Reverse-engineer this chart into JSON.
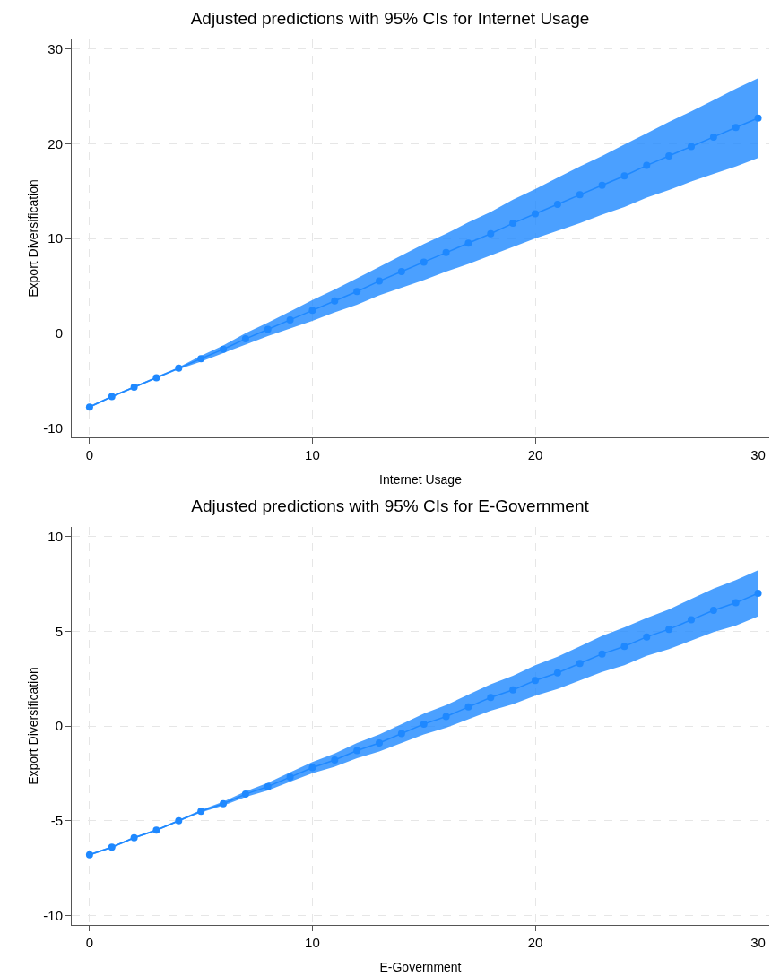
{
  "chart_data": [
    {
      "type": "line",
      "title": "Adjusted predictions with 95% CIs for Internet Usage",
      "xlabel": "Internet Usage",
      "ylabel": "Export Diversification",
      "x": [
        0,
        1,
        2,
        3,
        4,
        5,
        6,
        7,
        8,
        9,
        10,
        11,
        12,
        13,
        14,
        15,
        16,
        17,
        18,
        19,
        20,
        21,
        22,
        23,
        24,
        25,
        26,
        27,
        28,
        29,
        30
      ],
      "series": [
        {
          "color": "#1e88ff",
          "values": [
            -7.8,
            -6.7,
            -5.7,
            -4.7,
            -3.7,
            -2.7,
            -1.7,
            -0.6,
            0.4,
            1.4,
            2.4,
            3.4,
            4.4,
            5.5,
            6.5,
            7.5,
            8.5,
            9.5,
            10.5,
            11.6,
            12.6,
            13.6,
            14.6,
            15.6,
            16.6,
            17.7,
            18.7,
            19.7,
            20.7,
            21.7,
            22.7
          ],
          "lower": [
            -7.9,
            -6.8,
            -5.8,
            -4.8,
            -3.8,
            -3.0,
            -2.1,
            -1.2,
            -0.3,
            0.5,
            1.3,
            2.2,
            3.0,
            4.0,
            4.8,
            5.6,
            6.5,
            7.3,
            8.2,
            9.1,
            10.0,
            10.8,
            11.6,
            12.5,
            13.3,
            14.3,
            15.1,
            16.0,
            16.8,
            17.6,
            18.5
          ],
          "upper": [
            -7.7,
            -6.6,
            -5.6,
            -4.6,
            -3.6,
            -2.4,
            -1.3,
            0.0,
            1.1,
            2.3,
            3.5,
            4.6,
            5.8,
            7.0,
            8.2,
            9.4,
            10.5,
            11.7,
            12.8,
            14.1,
            15.2,
            16.4,
            17.6,
            18.7,
            19.9,
            21.1,
            22.3,
            23.4,
            24.6,
            25.8,
            26.9
          ]
        }
      ],
      "xlim": [
        -0.8,
        30.5
      ],
      "xticks": [
        0,
        10,
        20,
        30
      ],
      "ylim": [
        -11,
        31
      ],
      "yticks": [
        -10,
        0,
        10,
        20,
        30
      ],
      "grid": true,
      "marker": "circle",
      "line_style": "solid"
    },
    {
      "type": "line",
      "title": "Adjusted predictions with 95% CIs for E-Government",
      "xlabel": "E-Government",
      "ylabel": "Export Diversification",
      "x": [
        0,
        1,
        2,
        3,
        4,
        5,
        6,
        7,
        8,
        9,
        10,
        11,
        12,
        13,
        14,
        15,
        16,
        17,
        18,
        19,
        20,
        21,
        22,
        23,
        24,
        25,
        26,
        27,
        28,
        29,
        30
      ],
      "series": [
        {
          "color": "#1e88ff",
          "values": [
            -6.8,
            -6.4,
            -5.9,
            -5.5,
            -5.0,
            -4.5,
            -4.1,
            -3.6,
            -3.2,
            -2.7,
            -2.2,
            -1.8,
            -1.3,
            -0.9,
            -0.4,
            0.1,
            0.5,
            1.0,
            1.5,
            1.9,
            2.4,
            2.8,
            3.3,
            3.8,
            4.2,
            4.7,
            5.1,
            5.6,
            6.1,
            6.5,
            7.0
          ],
          "lower": [
            -6.85,
            -6.45,
            -5.95,
            -5.55,
            -5.05,
            -4.57,
            -4.2,
            -3.75,
            -3.4,
            -2.95,
            -2.5,
            -2.15,
            -1.7,
            -1.35,
            -0.9,
            -0.45,
            -0.1,
            0.35,
            0.8,
            1.15,
            1.6,
            1.95,
            2.4,
            2.85,
            3.2,
            3.7,
            4.05,
            4.5,
            4.95,
            5.3,
            5.78
          ],
          "upper": [
            -6.75,
            -6.35,
            -5.85,
            -5.45,
            -4.95,
            -4.43,
            -4.0,
            -3.45,
            -3.0,
            -2.45,
            -1.9,
            -1.45,
            -0.9,
            -0.45,
            0.1,
            0.65,
            1.1,
            1.65,
            2.2,
            2.65,
            3.2,
            3.65,
            4.2,
            4.75,
            5.2,
            5.7,
            6.15,
            6.7,
            7.25,
            7.7,
            8.22
          ]
        }
      ],
      "xlim": [
        -0.8,
        30.5
      ],
      "xticks": [
        0,
        10,
        20,
        30
      ],
      "ylim": [
        -10.5,
        10.5
      ],
      "yticks": [
        -10,
        -5,
        0,
        5,
        10
      ],
      "grid": true,
      "marker": "circle",
      "line_style": "solid"
    }
  ]
}
